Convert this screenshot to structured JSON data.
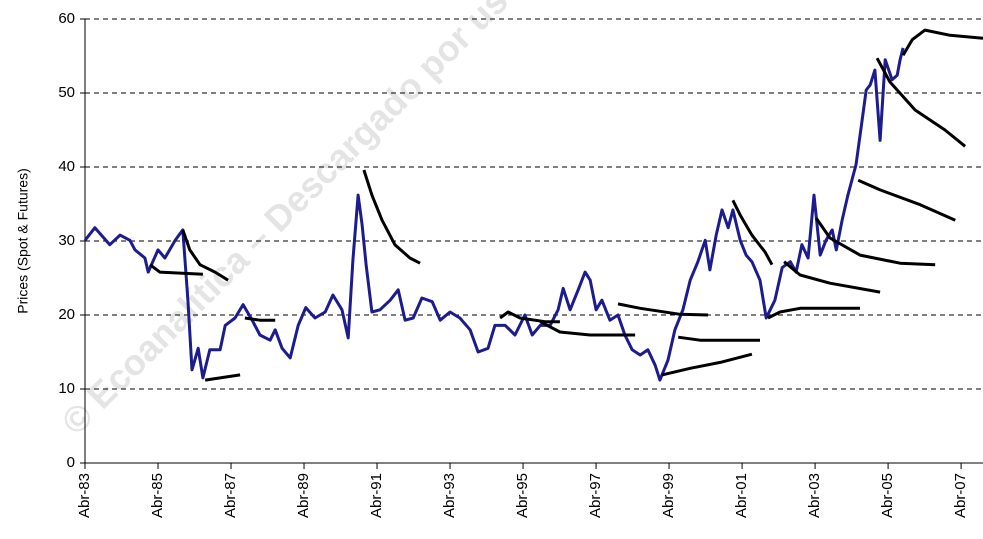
{
  "chart_data": {
    "type": "line",
    "y_label": "Prices (Spot & Futures)",
    "watermark": "© Ecoanalítica – Descargado por us",
    "xlim": [
      1983.25,
      2007.85
    ],
    "xticks": [
      {
        "value": 1983.25,
        "label": "Abr-83"
      },
      {
        "value": 1985.25,
        "label": "Abr-85"
      },
      {
        "value": 1987.25,
        "label": "Abr-87"
      },
      {
        "value": 1989.25,
        "label": "Abr-89"
      },
      {
        "value": 1991.25,
        "label": "Abr-91"
      },
      {
        "value": 1993.25,
        "label": "Abr-93"
      },
      {
        "value": 1995.25,
        "label": "Abr-95"
      },
      {
        "value": 1997.25,
        "label": "Abr-97"
      },
      {
        "value": 1999.25,
        "label": "Abr-99"
      },
      {
        "value": 2001.25,
        "label": "Abr-01"
      },
      {
        "value": 2003.25,
        "label": "Abr-03"
      },
      {
        "value": 2005.25,
        "label": "Abr-05"
      },
      {
        "value": 2007.25,
        "label": "Abr-07"
      }
    ],
    "ylim": [
      0,
      60
    ],
    "yticks": [
      0,
      10,
      20,
      30,
      40,
      50,
      60
    ],
    "grid": true,
    "series": [
      {
        "color": "#1c1c8f",
        "x": [
          1983.25,
          1983.52,
          1983.93,
          1984.21,
          1984.48,
          1984.62,
          1984.89,
          1984.98,
          1985.25,
          1985.44,
          1985.72,
          1985.93,
          1986.07,
          1986.18,
          1986.35,
          1986.48,
          1986.67,
          1986.95,
          1987.09,
          1987.36,
          1987.58,
          1987.83,
          1988.04,
          1988.32,
          1988.46,
          1988.65,
          1988.87,
          1989.09,
          1989.3,
          1989.55,
          1989.83,
          1990.04,
          1990.29,
          1990.46,
          1990.59,
          1990.73,
          1990.84,
          1990.95,
          1991.11,
          1991.33,
          1991.61,
          1991.83,
          1992.02,
          1992.24,
          1992.48,
          1992.76,
          1992.98,
          1993.25,
          1993.52,
          1993.8,
          1994.02,
          1994.29,
          1994.48,
          1994.76,
          1995.03,
          1995.3,
          1995.5,
          1995.72,
          1995.99,
          1996.21,
          1996.35,
          1996.54,
          1996.76,
          1996.95,
          1997.09,
          1997.25,
          1997.41,
          1997.63,
          1997.85,
          1998.04,
          1998.24,
          1998.46,
          1998.67,
          1998.87,
          1999.0,
          1999.22,
          1999.41,
          1999.63,
          1999.83,
          2000.04,
          2000.24,
          2000.37,
          2000.54,
          2000.7,
          2000.87,
          2001.0,
          2001.2,
          2001.36,
          2001.52,
          2001.74,
          2001.91,
          2002.15,
          2002.35,
          2002.57,
          2002.73,
          2002.89,
          2003.06,
          2003.22,
          2003.39,
          2003.55,
          2003.72,
          2003.83,
          2003.99,
          2004.15,
          2004.37,
          2004.54,
          2004.65,
          2004.76,
          2004.89,
          2005.03,
          2005.17,
          2005.36,
          2005.5,
          2005.58,
          2005.66
        ],
        "values": [
          30.1,
          31.8,
          29.5,
          30.8,
          30.1,
          28.8,
          27.7,
          25.8,
          28.8,
          27.7,
          30.1,
          31.5,
          22,
          12.6,
          15.5,
          11.5,
          15.3,
          15.3,
          18.6,
          19.6,
          21.4,
          19.3,
          17.3,
          16.6,
          18,
          15.5,
          14.2,
          18.6,
          21,
          19.6,
          20.4,
          22.7,
          20.7,
          16.9,
          27.4,
          36.2,
          32.2,
          26.8,
          20.4,
          20.7,
          22,
          23.4,
          19.3,
          19.6,
          22.3,
          21.8,
          19.3,
          20.4,
          19.6,
          18,
          15,
          15.5,
          18.6,
          18.6,
          17.3,
          20,
          17.3,
          18.6,
          18.6,
          20.7,
          23.6,
          20.7,
          23.4,
          25.8,
          24.7,
          20.7,
          22,
          19.3,
          20,
          17.3,
          15.3,
          14.6,
          15.3,
          13.2,
          11.2,
          13.9,
          18,
          20.7,
          24.7,
          27.2,
          30.1,
          26.1,
          30.8,
          34.2,
          31.8,
          34.2,
          30.1,
          28.1,
          27.2,
          24.7,
          19.6,
          22,
          26.4,
          27.2,
          25.8,
          29.5,
          27.7,
          36.2,
          28.1,
          30.1,
          31.5,
          28.8,
          32.8,
          36.2,
          40.3,
          46.4,
          50.4,
          51.1,
          53.1,
          43.6,
          54.5,
          51.8,
          52.4,
          54.5,
          56.1
        ]
      },
      {
        "color": "#000000",
        "x": [
          1985.93,
          1986.12,
          1986.4,
          1986.81,
          1987.17
        ],
        "values": [
          31.5,
          28.8,
          26.8,
          25.8,
          24.7
        ]
      },
      {
        "color": "#000000",
        "x": [
          1985.03,
          1985.3,
          1986.48
        ],
        "values": [
          26.8,
          25.8,
          25.5
        ]
      },
      {
        "color": "#000000",
        "x": [
          1986.54,
          1986.95,
          1987.5
        ],
        "values": [
          11.2,
          11.5,
          11.9
        ]
      },
      {
        "color": "#000000",
        "x": [
          1987.63,
          1988.04,
          1988.46
        ],
        "values": [
          19.6,
          19.3,
          19.3
        ]
      },
      {
        "color": "#000000",
        "x": [
          1990.89,
          1991.11,
          1991.39,
          1991.74,
          1992.15,
          1992.43
        ],
        "values": [
          39.6,
          36.2,
          32.8,
          29.5,
          27.7,
          27.0
        ]
      },
      {
        "color": "#000000",
        "x": [
          1994.62,
          1994.84,
          1995.17,
          1995.85,
          1996.26
        ],
        "values": [
          19.6,
          20.4,
          19.6,
          19.1,
          19.1
        ]
      },
      {
        "color": "#000000",
        "x": [
          1995.72,
          1996.26,
          1997.09,
          1998.32
        ],
        "values": [
          19.1,
          17.7,
          17.3,
          17.3
        ]
      },
      {
        "color": "#000000",
        "x": [
          1997.85,
          1998.46,
          1999.55,
          2000.32
        ],
        "values": [
          21.5,
          20.9,
          20.1,
          20
        ]
      },
      {
        "color": "#000000",
        "x": [
          1999.5,
          2000.1,
          2000.92,
          2001.74
        ],
        "values": [
          17,
          16.6,
          16.6,
          16.6
        ]
      },
      {
        "color": "#000000",
        "x": [
          1999.06,
          1999.83,
          2000.65,
          2001.52
        ],
        "values": [
          11.9,
          12.8,
          13.6,
          14.7
        ]
      },
      {
        "color": "#000000",
        "x": [
          2001.0,
          2001.2,
          2001.52,
          2001.88,
          2002.07
        ],
        "values": [
          35.5,
          33.5,
          30.8,
          28.5,
          26.8
        ]
      },
      {
        "color": "#000000",
        "x": [
          2001.96,
          2002.29,
          2002.84,
          2004.48
        ],
        "values": [
          19.6,
          20.4,
          20.9,
          20.9
        ]
      },
      {
        "color": "#000000",
        "x": [
          2002.4,
          2002.84,
          2003.66,
          2005.03
        ],
        "values": [
          27.2,
          25.4,
          24.3,
          23.1
        ]
      },
      {
        "color": "#000000",
        "x": [
          2003.28,
          2003.66,
          2004.48,
          2005.58,
          2006.54
        ],
        "values": [
          33.1,
          30.4,
          28.1,
          27.0,
          26.8
        ]
      },
      {
        "color": "#000000",
        "x": [
          2004.43,
          2005.03,
          2006.13,
          2007.09
        ],
        "values": [
          38.2,
          36.9,
          34.9,
          32.8
        ]
      },
      {
        "color": "#000000",
        "x": [
          2004.95,
          2005.3,
          2005.99,
          2006.81,
          2007.36
        ],
        "values": [
          54.7,
          51.5,
          47.7,
          45,
          42.8
        ]
      },
      {
        "color": "#000000",
        "x": [
          2005.66,
          2005.91,
          2006.26,
          2006.95,
          2007.85
        ],
        "values": [
          55.1,
          57.2,
          58.5,
          57.8,
          57.4
        ]
      }
    ]
  }
}
